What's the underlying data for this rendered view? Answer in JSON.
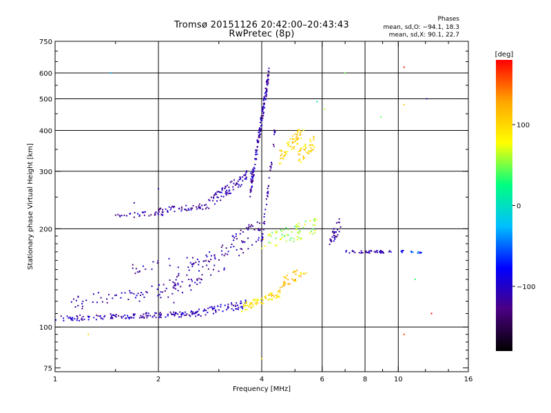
{
  "title": {
    "line1": "Tromsø 20151126 20:42:00–20:43:43",
    "line2": "RwPretec (8p)"
  },
  "phases_box": {
    "title": "Phases",
    "o_line": "mean, sd,O: −94.1, 18.3",
    "x_line": "mean, sd,X:  90.1, 22.7"
  },
  "colorbar": {
    "title": "[deg]",
    "ticks": [
      "100",
      "0",
      "−100"
    ],
    "tick_values": [
      100,
      0,
      -100
    ],
    "range": [
      -180,
      180
    ],
    "palette": [
      "#000000",
      "#4b0082",
      "#0000ff",
      "#00bfff",
      "#00ff80",
      "#ffff00",
      "#ffa500",
      "#ff0000"
    ]
  },
  "chart_data": {
    "type": "scatter",
    "xlabel": "Frequency [MHz]",
    "ylabel": "Stationary phase Virtual Height [km]",
    "x_scale": "log",
    "y_scale": "log",
    "xlim": [
      1,
      16
    ],
    "ylim": [
      73,
      750
    ],
    "x_ticks": [
      1,
      2,
      4,
      6,
      8,
      10,
      16
    ],
    "x_minor_ticks": [
      1.5,
      3,
      5,
      7,
      9,
      12,
      14
    ],
    "y_ticks": [
      75,
      100,
      200,
      300,
      400,
      500,
      600,
      750
    ],
    "grid_x": [
      2,
      4,
      6,
      8,
      10
    ],
    "grid_y": [
      100,
      200,
      300,
      400,
      500,
      600
    ],
    "color_by": "phase [deg]",
    "traces": [
      {
        "f0": 1.0,
        "f1": 1.6,
        "h0": 106,
        "h1": 108,
        "phase": -110,
        "n": 60,
        "spread": 0.02
      },
      {
        "f0": 1.6,
        "f1": 2.6,
        "h0": 108,
        "h1": 110,
        "phase": -110,
        "n": 90,
        "spread": 0.02
      },
      {
        "f0": 2.6,
        "f1": 3.6,
        "h0": 110,
        "h1": 118,
        "phase": -105,
        "n": 60,
        "spread": 0.03
      },
      {
        "f0": 3.5,
        "f1": 4.6,
        "h0": 115,
        "h1": 128,
        "phase": 95,
        "n": 70,
        "spread": 0.03
      },
      {
        "f0": 1.1,
        "f1": 2.4,
        "h0": 118,
        "h1": 132,
        "phase": -110,
        "n": 60,
        "spread": 0.05
      },
      {
        "f0": 1.5,
        "f1": 2.1,
        "h0": 220,
        "h1": 222,
        "phase": -115,
        "n": 35,
        "spread": 0.02
      },
      {
        "f0": 2.0,
        "f1": 2.8,
        "h0": 228,
        "h1": 235,
        "phase": -115,
        "n": 50,
        "spread": 0.02
      },
      {
        "f0": 2.8,
        "f1": 3.8,
        "h0": 240,
        "h1": 300,
        "phase": -110,
        "n": 80,
        "spread": 0.04
      },
      {
        "f0": 3.7,
        "f1": 4.2,
        "h0": 260,
        "h1": 600,
        "phase": -110,
        "n": 150,
        "spread": 0.05
      },
      {
        "f0": 4.5,
        "f1": 5.3,
        "h0": 330,
        "h1": 400,
        "phase": 100,
        "n": 60,
        "spread": 0.05
      },
      {
        "f0": 5.1,
        "f1": 5.7,
        "h0": 330,
        "h1": 370,
        "phase": 100,
        "n": 45,
        "spread": 0.05
      },
      {
        "f0": 2.1,
        "f1": 4.0,
        "h0": 125,
        "h1": 200,
        "phase": -115,
        "n": 110,
        "spread": 0.1
      },
      {
        "f0": 4.0,
        "f1": 5.8,
        "h0": 180,
        "h1": 205,
        "phase": 60,
        "n": 70,
        "spread": 0.06
      },
      {
        "f0": 6.3,
        "f1": 6.8,
        "h0": 180,
        "h1": 210,
        "phase": -115,
        "n": 30,
        "spread": 0.05
      },
      {
        "f0": 7.0,
        "f1": 9.6,
        "h0": 170,
        "h1": 170,
        "phase": -110,
        "n": 40,
        "spread": 0.01
      },
      {
        "f0": 10.2,
        "f1": 11.8,
        "h0": 170,
        "h1": 170,
        "phase": -60,
        "n": 14,
        "spread": 0.01
      },
      {
        "f0": 4.5,
        "f1": 5.4,
        "h0": 135,
        "h1": 150,
        "phase": 110,
        "n": 40,
        "spread": 0.04
      },
      {
        "f0": 4.0,
        "f1": 4.4,
        "h0": 180,
        "h1": 420,
        "phase": -120,
        "n": 40,
        "spread": 0.05
      },
      {
        "f0": 1.6,
        "f1": 3.0,
        "h0": 150,
        "h1": 165,
        "phase": -115,
        "n": 30,
        "spread": 0.04
      }
    ],
    "isolated_points": [
      {
        "f": 1.45,
        "h": 600,
        "phase": -30
      },
      {
        "f": 1.25,
        "h": 95,
        "phase": 100
      },
      {
        "f": 4.0,
        "h": 80,
        "phase": 100
      },
      {
        "f": 10.4,
        "h": 625,
        "phase": 170
      },
      {
        "f": 10.4,
        "h": 480,
        "phase": 110
      },
      {
        "f": 10.4,
        "h": 95,
        "phase": 160
      },
      {
        "f": 12.1,
        "h": 500,
        "phase": -110
      },
      {
        "f": 12.5,
        "h": 110,
        "phase": 180
      },
      {
        "f": 7.0,
        "h": 600,
        "phase": 50
      },
      {
        "f": 8.9,
        "h": 440,
        "phase": 40
      },
      {
        "f": 11.2,
        "h": 140,
        "phase": 30
      },
      {
        "f": 4.2,
        "h": 620,
        "phase": -110
      },
      {
        "f": 1.7,
        "h": 240,
        "phase": -110
      },
      {
        "f": 2.0,
        "h": 265,
        "phase": -110
      },
      {
        "f": 5.8,
        "h": 490,
        "phase": 0
      },
      {
        "f": 6.1,
        "h": 465,
        "phase": 60
      }
    ]
  }
}
